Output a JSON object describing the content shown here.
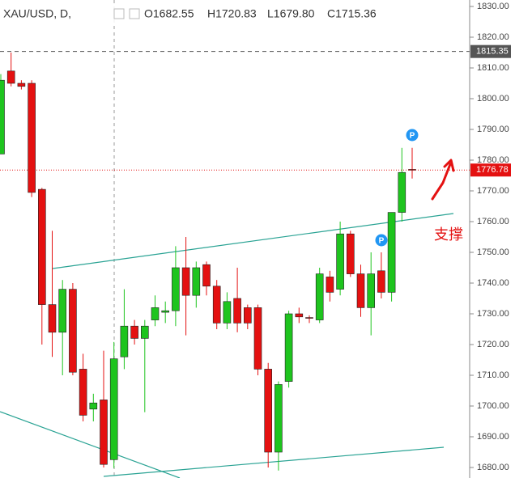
{
  "chart_data": {
    "type": "candlestick",
    "header": [
      "XAU/USD, D,",
      "O1682.55",
      "H1720.83",
      "L1679.80",
      "C1715.36"
    ],
    "open": [
      1782,
      1809,
      1805,
      1805,
      1770.5,
      1733,
      1724,
      1738,
      1712,
      1699,
      1702,
      1682.55,
      1716,
      1726,
      1722,
      1728,
      1730.5,
      1731,
      1745,
      1736,
      1746,
      1739,
      1727,
      1735,
      1732,
      1732,
      1712,
      1685,
      1708,
      1730,
      1728.8,
      1728,
      1742,
      1738,
      1756,
      1743,
      1732,
      1744,
      1737,
      1763,
      1777
    ],
    "high": [
      1808,
      1815,
      1806,
      1806,
      1771,
      1757,
      1741,
      1740,
      1717,
      1704,
      1718,
      1720.83,
      1738,
      1728,
      1728,
      1736,
      1734,
      1752,
      1755,
      1747,
      1747,
      1741,
      1737,
      1745,
      1733,
      1733,
      1714,
      1708,
      1731,
      1732,
      1729.5,
      1745,
      1744,
      1760,
      1757,
      1746,
      1750,
      1750,
      1763,
      1784,
      1784
    ],
    "low": [
      1782,
      1804,
      1803,
      1768,
      1720,
      1716,
      1710,
      1710,
      1695,
      1695,
      1680,
      1679.8,
      1712,
      1720,
      1698,
      1726,
      1727,
      1726,
      1723,
      1732,
      1736,
      1725,
      1725,
      1724,
      1725,
      1710,
      1680,
      1679,
      1706,
      1727,
      1727,
      1727,
      1734,
      1736,
      1742,
      1729,
      1723,
      1735,
      1734,
      1760,
      1774
    ],
    "close": [
      1806,
      1805,
      1804,
      1769.5,
      1733,
      1724,
      1738,
      1711,
      1697,
      1701,
      1681,
      1715.36,
      1726,
      1722,
      1726,
      1732,
      1731,
      1745,
      1736,
      1745,
      1739,
      1727,
      1734,
      1727,
      1727,
      1712,
      1685,
      1707,
      1730,
      1729,
      1728.6,
      1743,
      1737,
      1756,
      1743,
      1732,
      1743,
      1737,
      1763,
      1776,
      1776.78
    ],
    "up_color": "#1ec41e",
    "down_color": "#e41111",
    "ylim": [
      1680,
      1830
    ],
    "yticks": [
      {
        "value": 1680,
        "label": "1680.00"
      },
      {
        "value": 1690,
        "label": "1690.00"
      },
      {
        "value": 1700,
        "label": "1700.00"
      },
      {
        "value": 1710,
        "label": "1710.00"
      },
      {
        "value": 1720,
        "label": "1720.00"
      },
      {
        "value": 1730,
        "label": "1730.00"
      },
      {
        "value": 1740,
        "label": "1740.00"
      },
      {
        "value": 1750,
        "label": "1750.00"
      },
      {
        "value": 1760,
        "label": "1760.00"
      },
      {
        "value": 1770,
        "label": "1770.00"
      },
      {
        "value": 1780,
        "label": "1780.00"
      },
      {
        "value": 1790,
        "label": "1790.00"
      },
      {
        "value": 1800,
        "label": "1800.00"
      },
      {
        "value": 1810,
        "label": "1810.00"
      },
      {
        "value": 1820,
        "label": "1820.00"
      },
      {
        "value": 1830,
        "label": "1830.00"
      }
    ],
    "price_lines": [
      {
        "value": 1815.35,
        "color": "#555555"
      },
      {
        "value": 1776.78,
        "color": "#e41111"
      }
    ],
    "event_markers": [
      "P",
      "P"
    ],
    "annotation": "支撑"
  }
}
